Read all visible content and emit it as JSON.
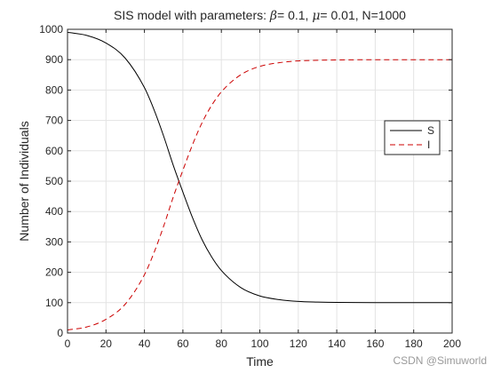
{
  "chart_data": {
    "type": "line",
    "title_parts": {
      "prefix": "SIS model with parameters: ",
      "beta_symbol": "β",
      "beta_text": "= 0.1, ",
      "mu_symbol": "μ",
      "mu_text": "= 0.01, N=1000"
    },
    "xlabel": "Time",
    "ylabel": "Number of Individuals",
    "xlim": [
      0,
      200
    ],
    "ylim": [
      0,
      1000
    ],
    "xticks": [
      0,
      20,
      40,
      60,
      80,
      100,
      120,
      140,
      160,
      180,
      200
    ],
    "yticks": [
      0,
      100,
      200,
      300,
      400,
      500,
      600,
      700,
      800,
      900,
      1000
    ],
    "grid": true,
    "legend_position": "top-right",
    "series": [
      {
        "name": "S",
        "color": "#000000",
        "style": "solid",
        "x": [
          0,
          10,
          20,
          30,
          40,
          45,
          50,
          55,
          60,
          65,
          70,
          75,
          80,
          90,
          100,
          110,
          120,
          130,
          140,
          160,
          180,
          200
        ],
        "y": [
          990,
          980,
          955,
          905,
          808,
          735,
          648,
          552,
          464,
          380,
          307,
          250,
          206,
          150,
          122,
          110,
          104,
          102,
          101,
          100,
          100,
          100
        ]
      },
      {
        "name": "I",
        "color": "#cc0000",
        "style": "dashed",
        "x": [
          0,
          10,
          20,
          30,
          40,
          45,
          50,
          55,
          60,
          65,
          70,
          75,
          80,
          90,
          100,
          110,
          120,
          130,
          140,
          160,
          180,
          200
        ],
        "y": [
          10,
          20,
          45,
          95,
          192,
          265,
          352,
          448,
          536,
          620,
          693,
          750,
          794,
          850,
          878,
          890,
          896,
          898,
          899,
          900,
          900,
          900
        ]
      }
    ]
  },
  "watermark": "CSDN @Simuworld"
}
